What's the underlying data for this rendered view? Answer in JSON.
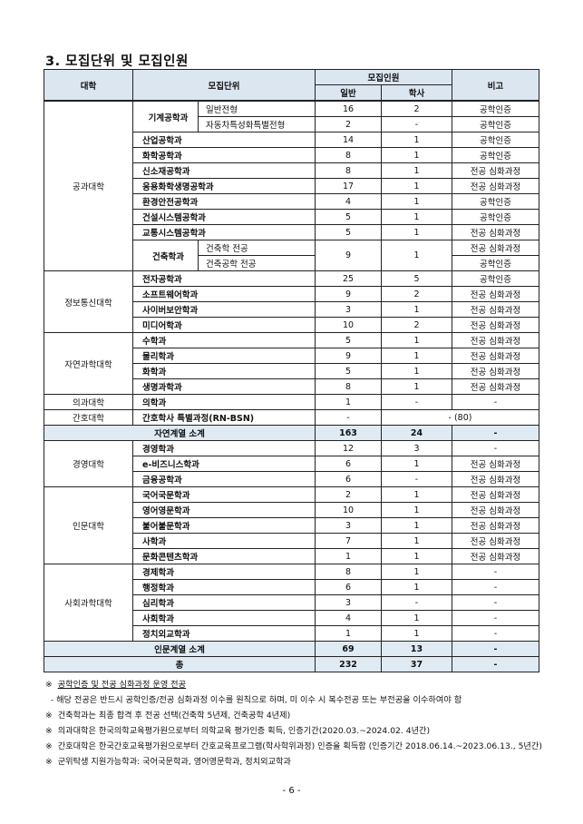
{
  "title": "3. 모집단위 및 모집인원",
  "table": {
    "headers": {
      "college": "대학",
      "unit": "모집단위",
      "quota": "모집인원",
      "general": "일반",
      "bachelor": "학사",
      "note": "비고"
    },
    "groups": [
      {
        "college": "공과대학",
        "rows": [
          {
            "unit": "기계공학과",
            "subs": [
              {
                "name": "일반전형",
                "general": "16",
                "bachelor": "2",
                "note": "공학인증"
              },
              {
                "name": "자동차특성화특별전형",
                "general": "2",
                "bachelor": "-",
                "note": "공학인증"
              }
            ]
          },
          {
            "unit": "산업공학과",
            "general": "14",
            "bachelor": "1",
            "note": "공학인증"
          },
          {
            "unit": "화학공학과",
            "general": "8",
            "bachelor": "1",
            "note": "공학인증"
          },
          {
            "unit": "신소재공학과",
            "general": "8",
            "bachelor": "1",
            "note": "전공 심화과정"
          },
          {
            "unit": "응용화학생명공학과",
            "general": "17",
            "bachelor": "1",
            "note": "전공 심화과정"
          },
          {
            "unit": "환경안전공학과",
            "general": "4",
            "bachelor": "1",
            "note": "공학인증"
          },
          {
            "unit": "건설시스템공학과",
            "general": "5",
            "bachelor": "1",
            "note": "공학인증"
          },
          {
            "unit": "교통시스템공학과",
            "general": "5",
            "bachelor": "1",
            "note": "전공 심화과정"
          },
          {
            "unit": "건축학과",
            "general": "9",
            "bachelor": "1",
            "subs": [
              {
                "name": "건축학 전공",
                "note": "전공 심화과정"
              },
              {
                "name": "건축공학 전공",
                "note": "공학인증"
              }
            ]
          }
        ]
      },
      {
        "college": "정보통신대학",
        "rows": [
          {
            "unit": "전자공학과",
            "general": "25",
            "bachelor": "5",
            "note": "공학인증"
          },
          {
            "unit": "소프트웨어학과",
            "general": "9",
            "bachelor": "2",
            "note": "전공 심화과정"
          },
          {
            "unit": "사이버보안학과",
            "general": "3",
            "bachelor": "1",
            "note": "전공 심화과정"
          },
          {
            "unit": "미디어학과",
            "general": "10",
            "bachelor": "2",
            "note": "전공 심화과정"
          }
        ]
      },
      {
        "college": "자연과학대학",
        "rows": [
          {
            "unit": "수학과",
            "general": "5",
            "bachelor": "1",
            "note": "전공 심화과정"
          },
          {
            "unit": "물리학과",
            "general": "9",
            "bachelor": "1",
            "note": "전공 심화과정"
          },
          {
            "unit": "화학과",
            "general": "5",
            "bachelor": "1",
            "note": "전공 심화과정"
          },
          {
            "unit": "생명과학과",
            "general": "8",
            "bachelor": "1",
            "note": "전공 심화과정"
          }
        ]
      },
      {
        "college": "의과대학",
        "rows": [
          {
            "unit": "의학과",
            "general": "1",
            "bachelor": "-",
            "note": "-"
          }
        ]
      },
      {
        "college": "간호대학",
        "rows": [
          {
            "unit": "간호학사 특별과정(RN-BSN)",
            "general": "-",
            "merged": "- (80)"
          }
        ]
      },
      {
        "type": "subtotal",
        "label": "자연계열 소계",
        "general": "163",
        "bachelor": "24",
        "note": "-"
      },
      {
        "college": "경영대학",
        "rows": [
          {
            "unit": "경영학과",
            "general": "12",
            "bachelor": "3",
            "note": "-"
          },
          {
            "unit": "e-비즈니스학과",
            "general": "6",
            "bachelor": "1",
            "note": "전공 심화과정"
          },
          {
            "unit": "금융공학과",
            "general": "6",
            "bachelor": "-",
            "note": "전공 심화과정"
          }
        ]
      },
      {
        "college": "인문대학",
        "rows": [
          {
            "unit": "국어국문학과",
            "general": "2",
            "bachelor": "1",
            "note": "전공 심화과정"
          },
          {
            "unit": "영어영문학과",
            "general": "10",
            "bachelor": "1",
            "note": "전공 심화과정"
          },
          {
            "unit": "불어불문학과",
            "general": "3",
            "bachelor": "1",
            "note": "전공 심화과정"
          },
          {
            "unit": "사학과",
            "general": "7",
            "bachelor": "1",
            "note": "전공 심화과정"
          },
          {
            "unit": "문화콘텐츠학과",
            "general": "1",
            "bachelor": "1",
            "note": "전공 심화과정"
          }
        ]
      },
      {
        "college": "사회과학대학",
        "rows": [
          {
            "unit": "경제학과",
            "general": "8",
            "bachelor": "1",
            "note": "-"
          },
          {
            "unit": "행정학과",
            "general": "6",
            "bachelor": "1",
            "note": "-"
          },
          {
            "unit": "심리학과",
            "general": "3",
            "bachelor": "-",
            "note": "-"
          },
          {
            "unit": "사회학과",
            "general": "4",
            "bachelor": "1",
            "note": "-"
          },
          {
            "unit": "정치외교학과",
            "general": "1",
            "bachelor": "1",
            "note": "-"
          }
        ]
      },
      {
        "type": "subtotal",
        "label": "인문계열 소계",
        "general": "69",
        "bachelor": "13",
        "note": "-"
      },
      {
        "type": "subtotal",
        "label": "총",
        "general": "232",
        "bachelor": "37",
        "note": "-"
      }
    ]
  },
  "notes": [
    {
      "mark": "※",
      "text": "공학인증 및 전공 심화과정 운영 전공",
      "underline": true
    },
    {
      "mark": "",
      "text": "  - 해당 전공은 반드시 공학인증/전공 심화과정 이수를 원칙으로 하며, 미 이수 시 복수전공 또는 부전공을 이수하여야 함"
    },
    {
      "mark": "※",
      "text": "건축학과는 최종 합격 후 전공 선택(건축학 5년제, 건축공학 4년제)"
    },
    {
      "mark": "※",
      "text": "의과대학은 한국의학교육평가원으로부터 의학교육 평가인증 획득, 인증기간(2020.03.~2024.02. 4년간)"
    },
    {
      "mark": "※",
      "text": "간호대학은 한국간호교육평가원으로부터 간호교육프로그램(학사학위과정) 인증을 획득함 (인증기간 2018.06.14.~2023.06.13., 5년간)"
    },
    {
      "mark": "※",
      "text": "군위탁생 지원가능학과: 국어국문학과, 영어영문학과, 정치외교학과"
    }
  ],
  "page_number": "- 6 -",
  "colors": {
    "header_bg": "#dce6f1",
    "subtotal_bg": "#e0eaf3"
  }
}
